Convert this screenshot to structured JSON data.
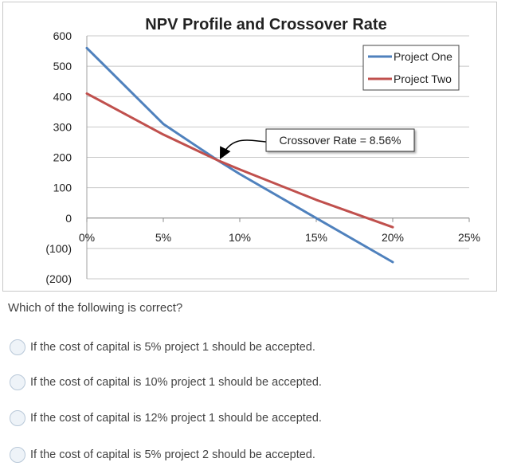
{
  "chart_data": {
    "type": "line",
    "title": "NPV Profile and Crossover Rate",
    "xlabel": "",
    "ylabel": "",
    "x_ticks": [
      "0%",
      "5%",
      "10%",
      "15%",
      "20%",
      "25%"
    ],
    "y_ticks": [
      "600",
      "500",
      "400",
      "300",
      "200",
      "100",
      "0",
      "(100)",
      "(200)"
    ],
    "xlim": [
      0,
      25
    ],
    "ylim": [
      -200,
      600
    ],
    "grid": "horizontal",
    "legend_position": "top-right",
    "series": [
      {
        "name": "Project One",
        "color": "#4f81bd",
        "x": [
          0,
          5,
          8.56,
          10,
          15,
          20
        ],
        "y": [
          560,
          310,
          190,
          145,
          0,
          -145
        ]
      },
      {
        "name": "Project Two",
        "color": "#c0504d",
        "x": [
          0,
          5,
          8.56,
          10,
          15,
          20
        ],
        "y": [
          410,
          275,
          190,
          160,
          60,
          -30
        ]
      }
    ],
    "annotation": {
      "text": "Crossover Rate = 8.56%",
      "x": 8.56,
      "y": 190
    }
  },
  "question": "Which of the following is correct?",
  "options": [
    "If the cost of capital is 5% project 1 should be accepted.",
    "If the cost of capital is 10% project 1 should be accepted.",
    "If the cost of capital is 12% project 1 should be accepted.",
    "If the cost of capital is 5% project 2 should be accepted."
  ]
}
